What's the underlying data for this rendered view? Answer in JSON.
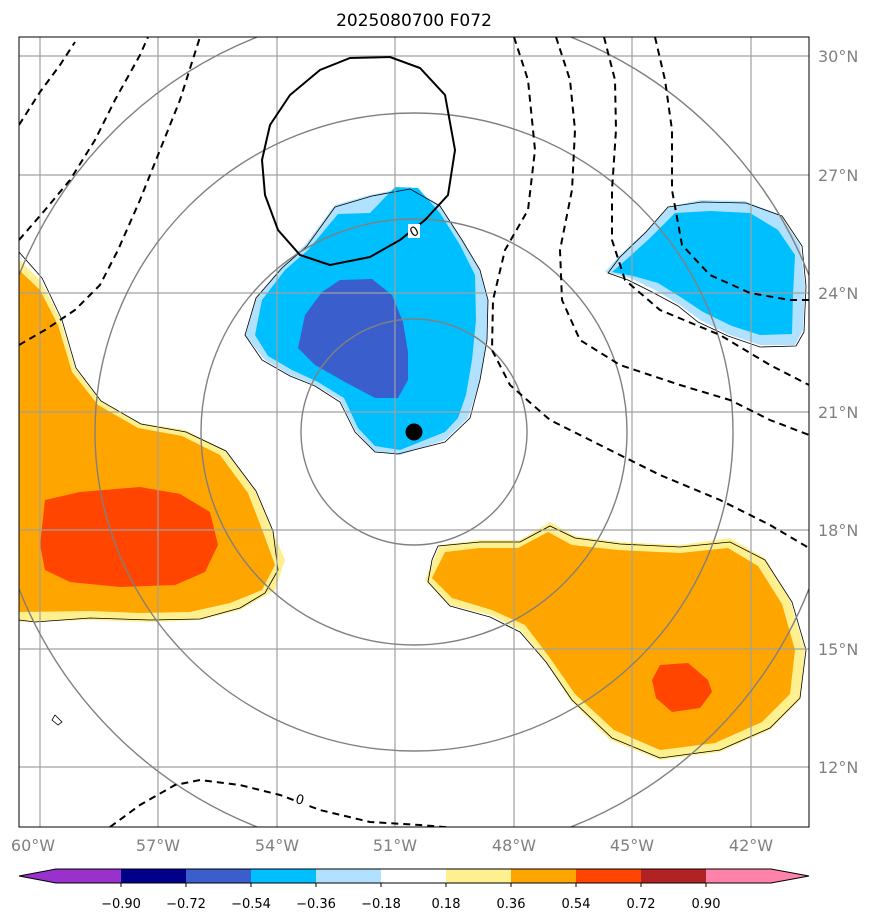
{
  "title": "2025080700 F072",
  "map": {
    "lon_labels": [
      "60°W",
      "57°W",
      "54°W",
      "51°W",
      "48°W",
      "45°W",
      "42°W"
    ],
    "lat_labels": [
      "30°N",
      "27°N",
      "24°N",
      "21°N",
      "18°N",
      "15°N",
      "12°N"
    ],
    "contour_labels": [
      "0",
      "0"
    ],
    "center_marker": {
      "lon": -50.5,
      "lat": 20.5
    }
  },
  "colorbar": {
    "ticks": [
      "−0.90",
      "−0.72",
      "−0.54",
      "−0.36",
      "−0.18",
      "0.18",
      "0.36",
      "0.54",
      "0.72",
      "0.90"
    ],
    "colors": [
      "#9932cc",
      "#00008b",
      "#3a5fcd",
      "#00bfff",
      "#b0e2ff",
      "#ffffff",
      "#fff08f",
      "#ffa500",
      "#ff4500",
      "#b22222",
      "#ff82ab"
    ]
  },
  "colors": {
    "grid": "#a0a0a0",
    "range_ring": "#808080",
    "neg_strong": "#3a5fcd",
    "neg_mid": "#00bfff",
    "neg_weak": "#b0e2ff",
    "pos_weak": "#fff08f",
    "pos_mid": "#ffa500",
    "pos_strong": "#ff4500"
  }
}
